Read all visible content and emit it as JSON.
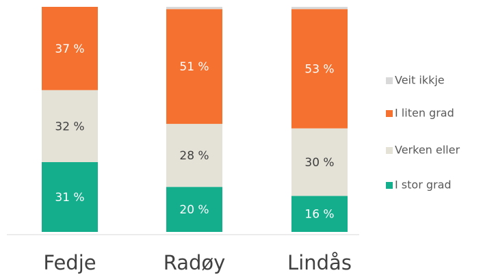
{
  "chart_data": {
    "type": "stacked_bar",
    "categories": [
      "Fedje",
      "Radøy",
      "Lindås"
    ],
    "series": [
      {
        "name": "I stor grad",
        "color": "#14ae8c",
        "values": [
          31,
          20,
          16
        ],
        "value_labels": [
          "31 %",
          "20 %",
          "16 %"
        ],
        "label_color": "#ffffff"
      },
      {
        "name": "Verken eller",
        "color": "#e4e1d6",
        "values": [
          32,
          28,
          30
        ],
        "value_labels": [
          "32 %",
          "28 %",
          "30 %"
        ],
        "label_color": "#404040"
      },
      {
        "name": "I liten grad",
        "color": "#f47130",
        "values": [
          37,
          51,
          53
        ],
        "value_labels": [
          "37 %",
          "51 %",
          "53 %"
        ],
        "label_color": "#ffffff"
      },
      {
        "name": "Veit ikkje",
        "color": "#d9d9d9",
        "values": [
          0,
          1,
          1
        ]
      }
    ],
    "legend": "right"
  }
}
